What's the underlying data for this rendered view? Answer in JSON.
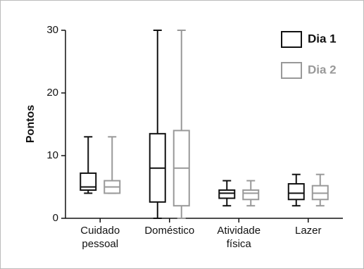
{
  "chart_data": {
    "type": "box",
    "y_label": "Pontos",
    "categories": [
      "Cuidado pessoal",
      "Doméstico",
      "Atividade física",
      "Lazer"
    ],
    "series": [
      {
        "name": "Dia 1",
        "color": "#111111",
        "min": [
          4,
          0,
          2,
          2
        ],
        "q1": [
          4.5,
          2.6,
          3.2,
          3
        ],
        "median": [
          5,
          8,
          4,
          4
        ],
        "q3": [
          7.2,
          13.5,
          4.5,
          5.5
        ],
        "max": [
          13,
          30,
          6,
          7
        ]
      },
      {
        "name": "Dia 2",
        "color": "#999999",
        "min": [
          4,
          0,
          2,
          2
        ],
        "q1": [
          4,
          2,
          3,
          3
        ],
        "median": [
          5,
          8,
          4,
          4
        ],
        "q3": [
          6,
          14,
          4.5,
          5.2
        ],
        "max": [
          13,
          30,
          6,
          7
        ]
      }
    ],
    "ylim": [
      0,
      30
    ],
    "yticks": [
      0,
      10,
      20,
      30
    ],
    "legend": "top-right"
  }
}
